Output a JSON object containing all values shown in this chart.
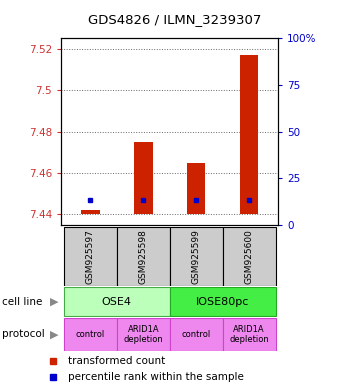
{
  "title": "GDS4826 / ILMN_3239307",
  "samples": [
    "GSM925597",
    "GSM925598",
    "GSM925599",
    "GSM925600"
  ],
  "bar_base": 7.44,
  "bar_tops": [
    7.442,
    7.475,
    7.465,
    7.517
  ],
  "percentile_values": [
    13,
    13,
    13,
    13
  ],
  "ylim_left": [
    7.435,
    7.525
  ],
  "ylim_right": [
    0,
    100
  ],
  "yticks_left": [
    7.44,
    7.46,
    7.48,
    7.5,
    7.52
  ],
  "ytick_labels_left": [
    "7.44",
    "7.46",
    "7.48",
    "7.5",
    "7.52"
  ],
  "yticks_right": [
    0,
    25,
    50,
    75,
    100
  ],
  "ytick_labels_right": [
    "0",
    "25",
    "50",
    "75",
    "100%"
  ],
  "bar_color": "#cc2200",
  "percentile_color": "#0000cc",
  "cell_lines": [
    [
      "OSE4",
      0,
      1
    ],
    [
      "IOSE80pc",
      2,
      3
    ]
  ],
  "cell_line_colors": [
    "#bbffbb",
    "#44ee44"
  ],
  "cell_line_edge_colors": [
    "#44aa44",
    "#22aa22"
  ],
  "protocols": [
    [
      "control",
      0,
      0
    ],
    [
      "ARID1A\ndepletion",
      1,
      1
    ],
    [
      "control",
      2,
      2
    ],
    [
      "ARID1A\ndepletion",
      3,
      3
    ]
  ],
  "protocol_color": "#ee88ee",
  "protocol_edge_color": "#cc44cc",
  "left_tick_color": "#cc3333",
  "right_tick_color": "#0000cc",
  "grid_color": "#666666",
  "bg_color": "#cccccc",
  "bar_width": 0.35
}
